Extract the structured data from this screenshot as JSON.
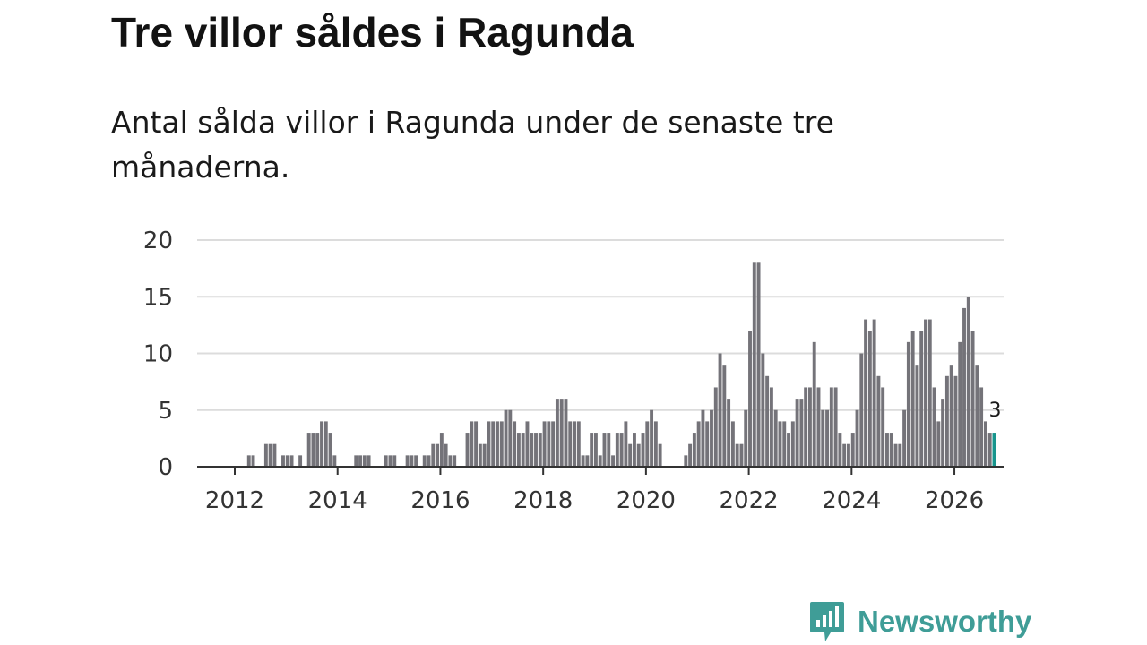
{
  "title": "Tre villor såldes i Ragunda",
  "subtitle": "Antal sålda villor i Ragunda under de senaste tre månaderna.",
  "brand": {
    "name": "Newsworthy",
    "icon": "newsworthy-logo-icon",
    "color": "#3f9d97"
  },
  "colors": {
    "bar": "#747379",
    "highlight": "#17958d",
    "grid": "#dcdcdc",
    "axis": "#333333"
  },
  "chart_data": {
    "type": "bar",
    "title": "Tre villor såldes i Ragunda",
    "subtitle": "Antal sålda villor i Ragunda under de senaste tre månaderna.",
    "xlabel": "",
    "ylabel": "",
    "ylim": [
      0,
      20
    ],
    "yticks": [
      "0",
      "5",
      "10",
      "15",
      "20"
    ],
    "grid": true,
    "x_start": "2012-01",
    "x_end": "2026-03",
    "xticks": [
      "2012",
      "2014",
      "2016",
      "2018",
      "2020",
      "2022",
      "2024",
      "2026"
    ],
    "highlight_label": "3",
    "series": [
      {
        "name": "Antal sålda villor",
        "values": [
          0,
          0,
          0,
          0,
          0,
          0,
          0,
          0,
          0,
          0,
          1,
          1,
          0,
          0,
          2,
          2,
          2,
          0,
          1,
          1,
          1,
          0,
          1,
          0,
          3,
          3,
          3,
          4,
          4,
          3,
          1,
          0,
          0,
          0,
          0,
          1,
          1,
          1,
          1,
          0,
          0,
          0,
          1,
          1,
          1,
          0,
          0,
          1,
          1,
          1,
          0,
          1,
          1,
          2,
          2,
          3,
          2,
          1,
          1,
          0,
          0,
          3,
          4,
          4,
          2,
          2,
          4,
          4,
          4,
          4,
          5,
          5,
          4,
          3,
          3,
          4,
          3,
          3,
          3,
          4,
          4,
          4,
          6,
          6,
          6,
          4,
          4,
          4,
          1,
          1,
          3,
          3,
          1,
          3,
          3,
          1,
          3,
          3,
          4,
          2,
          3,
          2,
          3,
          4,
          5,
          4,
          2,
          0,
          0,
          0,
          0,
          0,
          1,
          2,
          3,
          4,
          5,
          4,
          5,
          7,
          10,
          9,
          6,
          4,
          2,
          2,
          5,
          12,
          18,
          18,
          10,
          8,
          7,
          5,
          4,
          4,
          3,
          4,
          6,
          6,
          7,
          7,
          11,
          7,
          5,
          5,
          7,
          7,
          3,
          2,
          2,
          3,
          5,
          10,
          13,
          12,
          13,
          8,
          7,
          3,
          3,
          2,
          2,
          5,
          11,
          12,
          9,
          12,
          13,
          13,
          7,
          4,
          6,
          8,
          9,
          8,
          11,
          14,
          15,
          12,
          9,
          7,
          4,
          3,
          3
        ]
      }
    ],
    "highlight_last": 1
  }
}
